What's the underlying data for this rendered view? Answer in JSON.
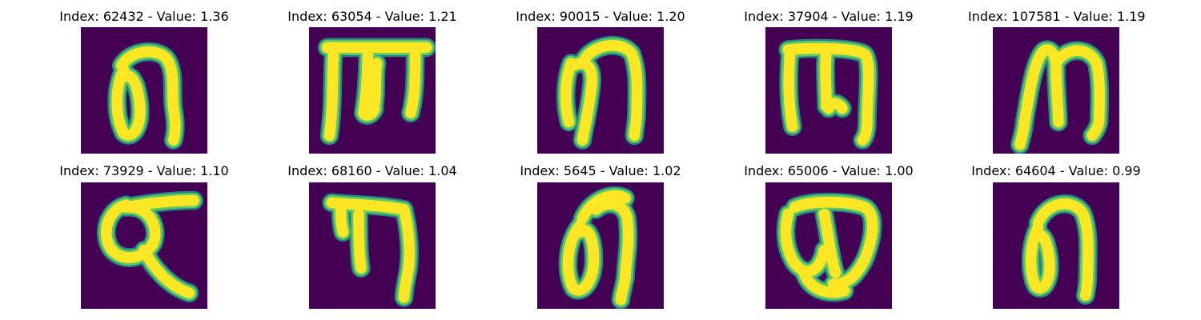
{
  "colors": {
    "background": "#440154",
    "edge_dark": "#21918c",
    "edge_mid": "#5ec962",
    "stroke": "#fde725"
  },
  "tiles": [
    {
      "title": "Index: 62432 - Value: 1.36"
    },
    {
      "title": "Index: 63054 - Value: 1.21"
    },
    {
      "title": "Index: 90015 - Value: 1.20"
    },
    {
      "title": "Index: 37904 - Value: 1.19"
    },
    {
      "title": "Index: 107581 - Value: 1.19"
    },
    {
      "title": "Index: 73929 - Value: 1.10"
    },
    {
      "title": "Index: 68160 - Value: 1.04"
    },
    {
      "title": "Index: 5645 - Value: 1.02"
    },
    {
      "title": "Index: 65006 - Value: 1.00"
    },
    {
      "title": "Index: 64604 - Value: 0.99"
    }
  ]
}
